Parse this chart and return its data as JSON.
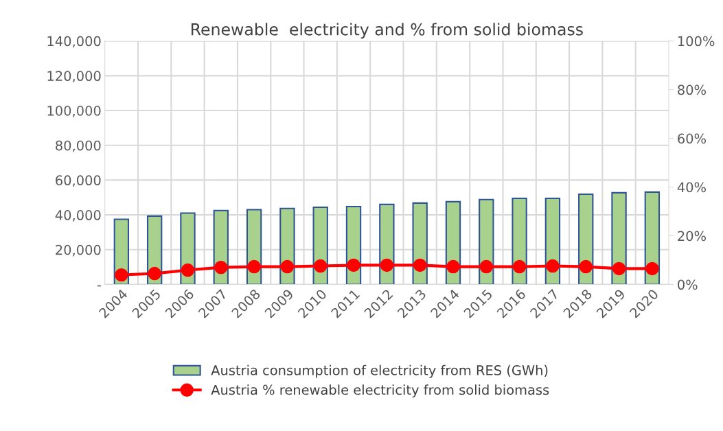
{
  "chart_data": {
    "type": "bar",
    "title": "Renewable  electricity and % from solid biomass",
    "categories": [
      "2004",
      "2005",
      "2006",
      "2007",
      "2008",
      "2009",
      "2010",
      "2011",
      "2012",
      "2013",
      "2014",
      "2015",
      "2016",
      "2017",
      "2018",
      "2019",
      "2020"
    ],
    "series": [
      {
        "name": "Austria consumption of electricity from RES (GWh)",
        "color": "#a9d18e",
        "values": [
          37500,
          39300,
          41000,
          42500,
          43000,
          43700,
          44400,
          44800,
          46000,
          46800,
          47600,
          48800,
          49500,
          49500,
          51900,
          52700,
          53100
        ]
      },
      {
        "name": "Austria % renewable electricity from solid biomass",
        "type": "line",
        "axis": "y2",
        "color": "#ff0000",
        "values": [
          3.9,
          4.5,
          5.9,
          7.0,
          7.3,
          7.3,
          7.6,
          7.9,
          7.9,
          7.9,
          7.3,
          7.3,
          7.3,
          7.6,
          7.3,
          6.5,
          6.5
        ]
      }
    ],
    "ylim": [
      0,
      140000
    ],
    "yticks": [
      {
        "value": 0,
        "label": "-"
      },
      {
        "value": 20000,
        "label": "20,000"
      },
      {
        "value": 40000,
        "label": "40,000"
      },
      {
        "value": 60000,
        "label": "60,000"
      },
      {
        "value": 80000,
        "label": "80,000"
      },
      {
        "value": 100000,
        "label": "100,000"
      },
      {
        "value": 120000,
        "label": "120,000"
      },
      {
        "value": 140000,
        "label": "140,000"
      }
    ],
    "y2lim": [
      0,
      100
    ],
    "y2ticks": [
      {
        "value": 0,
        "label": "0%"
      },
      {
        "value": 20,
        "label": "20%"
      },
      {
        "value": 40,
        "label": "40%"
      },
      {
        "value": 60,
        "label": "60%"
      },
      {
        "value": 80,
        "label": "80%"
      },
      {
        "value": 100,
        "label": "100%"
      }
    ],
    "grid": true,
    "legend": "bottom",
    "marker": "circle",
    "line_style": "solid"
  }
}
